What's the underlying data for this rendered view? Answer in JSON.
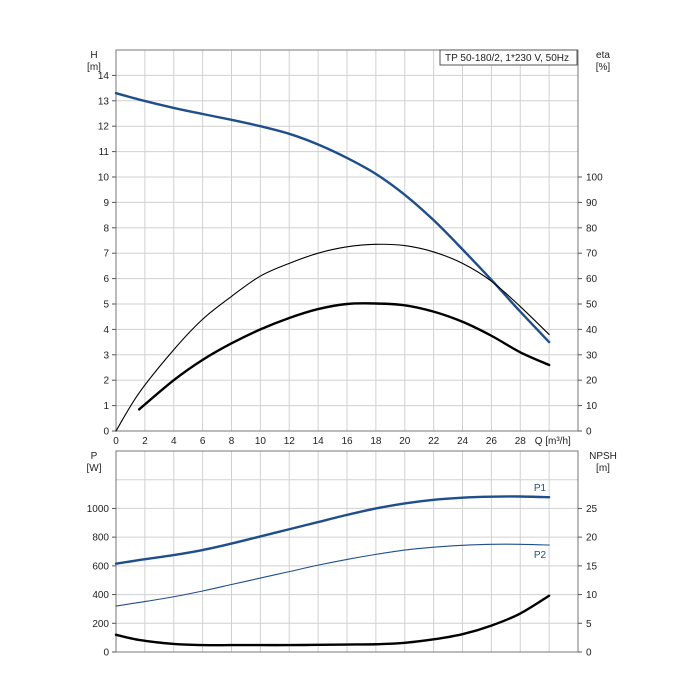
{
  "chart_data": [
    {
      "type": "line",
      "title": "TP 50-180/2, 1*230 V, 50Hz",
      "x_axis": {
        "label": "Q",
        "unit": "[m³/h]",
        "range": [
          0,
          32
        ],
        "ticks": [
          0,
          2,
          4,
          6,
          8,
          10,
          12,
          14,
          16,
          18,
          20,
          22,
          24,
          26,
          28
        ]
      },
      "y_left": {
        "label": "H",
        "unit": "[m]",
        "range": [
          0,
          15
        ],
        "ticks": [
          0,
          1,
          2,
          3,
          4,
          5,
          6,
          7,
          8,
          9,
          10,
          11,
          12,
          13,
          14
        ]
      },
      "y_right": {
        "label": "eta",
        "unit": "[%]",
        "range": [
          0,
          150
        ],
        "ticks": [
          0,
          10,
          20,
          30,
          40,
          50,
          60,
          70,
          80,
          90,
          100
        ]
      },
      "grid": true,
      "series": [
        {
          "name": "",
          "axis": "left",
          "color": "#1f4e8c",
          "style": "thick",
          "x": [
            0,
            1.6,
            4,
            6,
            8,
            10,
            12,
            14,
            16,
            18,
            20,
            22,
            24,
            26,
            28,
            30
          ],
          "y": [
            13.3,
            13.05,
            12.72,
            12.48,
            12.25,
            12.0,
            11.7,
            11.28,
            10.75,
            10.12,
            9.3,
            8.3,
            7.15,
            5.95,
            4.7,
            3.5
          ]
        },
        {
          "name": "",
          "axis": "right",
          "color": "#000000",
          "style": "thin",
          "x": [
            0,
            1.6,
            4,
            6,
            8,
            10,
            12,
            14,
            16,
            18,
            20,
            22,
            24,
            26,
            28,
            30
          ],
          "y": [
            0,
            15,
            32,
            44,
            53,
            61,
            66,
            70,
            72.5,
            73.5,
            73,
            70.5,
            66,
            59,
            49,
            38
          ]
        },
        {
          "name": "",
          "axis": "right",
          "color": "#000000",
          "style": "thick",
          "x": [
            1.6,
            4,
            6,
            8,
            10,
            12,
            14,
            16,
            18,
            20,
            22,
            24,
            26,
            28,
            30
          ],
          "y": [
            8.5,
            20,
            28,
            34.5,
            40,
            44.5,
            48,
            50,
            50.2,
            49.5,
            47,
            43,
            37.5,
            31,
            26
          ]
        }
      ]
    },
    {
      "type": "line",
      "x_axis": {
        "label": "",
        "unit": "",
        "range": [
          0,
          32
        ]
      },
      "y_left": {
        "label": "P",
        "unit": "[W]",
        "range": [
          0,
          1400
        ],
        "ticks": [
          0,
          200,
          400,
          600,
          800,
          1000
        ]
      },
      "y_right": {
        "label": "NPSH",
        "unit": "[m]",
        "range": [
          0,
          35
        ],
        "ticks": [
          0,
          5,
          10,
          15,
          20,
          25
        ]
      },
      "grid": true,
      "series": [
        {
          "name": "P1",
          "axis": "left",
          "color": "#1f4e8c",
          "style": "thick",
          "x": [
            0,
            1.6,
            4,
            6,
            8,
            10,
            12,
            14,
            16,
            18,
            20,
            22,
            24,
            26,
            28,
            30
          ],
          "y": [
            615,
            640,
            675,
            710,
            755,
            805,
            855,
            905,
            955,
            1000,
            1035,
            1060,
            1075,
            1082,
            1083,
            1078
          ]
        },
        {
          "name": "P2",
          "axis": "left",
          "color": "#1f4e8c",
          "style": "thin",
          "x": [
            0,
            1.6,
            4,
            6,
            8,
            10,
            12,
            14,
            16,
            18,
            20,
            22,
            24,
            26,
            28,
            30
          ],
          "y": [
            320,
            345,
            385,
            425,
            470,
            515,
            560,
            605,
            645,
            680,
            710,
            730,
            743,
            750,
            750,
            745
          ]
        },
        {
          "name": "",
          "axis": "right",
          "color": "#000000",
          "style": "thick",
          "x": [
            0,
            1.6,
            4,
            6,
            8,
            10,
            12,
            14,
            16,
            18,
            20,
            22,
            24,
            26,
            28,
            30
          ],
          "y": [
            3.0,
            2.1,
            1.4,
            1.2,
            1.2,
            1.2,
            1.2,
            1.25,
            1.3,
            1.35,
            1.6,
            2.2,
            3.1,
            4.6,
            6.7,
            9.8
          ]
        }
      ]
    }
  ]
}
